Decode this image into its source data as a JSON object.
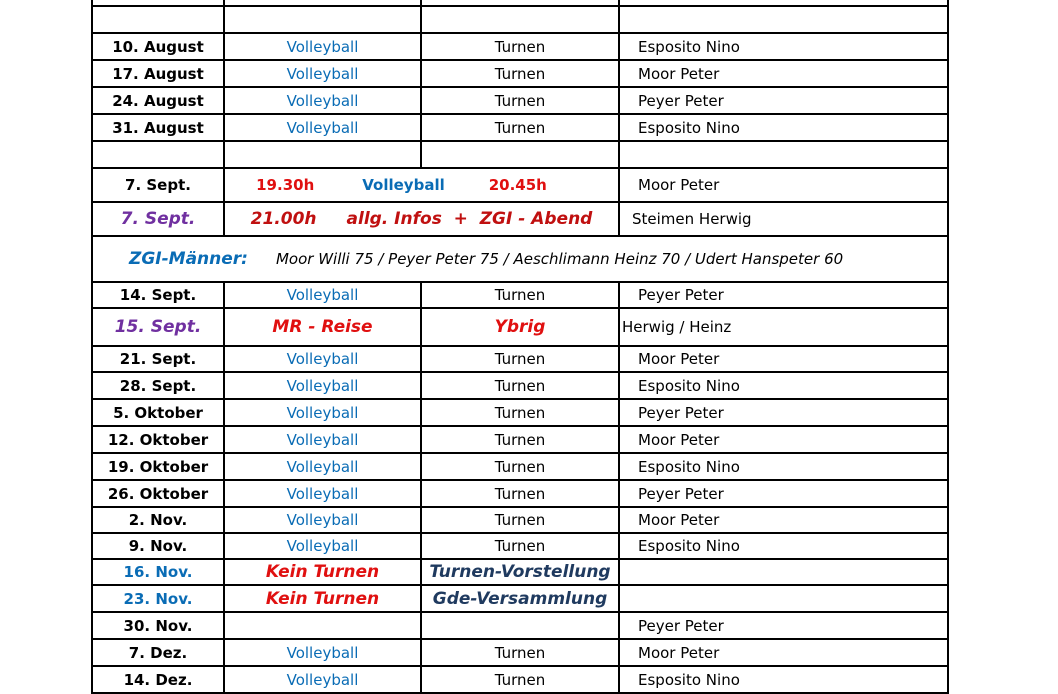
{
  "schedule": {
    "rows": [
      {
        "type": "blank"
      },
      {
        "type": "blank"
      },
      {
        "type": "normal",
        "date": "10. August",
        "a": "Volleyball",
        "b": "Turnen",
        "person": "Esposito Nino"
      },
      {
        "type": "normal",
        "date": "17. August",
        "a": "Volleyball",
        "b": "Turnen",
        "person": "Moor Peter"
      },
      {
        "type": "normal",
        "date": "24. August",
        "a": "Volleyball",
        "b": "Turnen",
        "person": "Peyer Peter"
      },
      {
        "type": "normal",
        "date": "31. August",
        "a": "Volleyball",
        "b": "Turnen",
        "person": "Esposito Nino"
      },
      {
        "type": "blank"
      },
      {
        "type": "times",
        "date": "7. Sept.",
        "start": "19.30h",
        "activity": "Volleyball",
        "end": "20.45h",
        "person": "Moor Peter"
      },
      {
        "type": "event",
        "date": "7. Sept.",
        "time": "21.00h",
        "activity": "allg. Infos  +  ZGI - Abend",
        "person": "Steimen Herwig"
      },
      {
        "type": "banner",
        "label": "ZGI-Männer:",
        "text": "Moor Willi 75 / Peyer Peter 75 / Aeschlimann Heinz 70 / Udert Hanspeter 60"
      },
      {
        "type": "normal",
        "date": "14. Sept.",
        "a": "Volleyball",
        "b": "Turnen",
        "person": "Peyer Peter"
      },
      {
        "type": "trip",
        "date": "15. Sept.",
        "a": "MR - Reise",
        "b": "Ybrig",
        "person": "Herwig / Heinz"
      },
      {
        "type": "normal",
        "date": "21. Sept.",
        "a": "Volleyball",
        "b": "Turnen",
        "person": "Moor Peter"
      },
      {
        "type": "normal",
        "date": "28. Sept.",
        "a": "Volleyball",
        "b": "Turnen",
        "person": "Esposito Nino"
      },
      {
        "type": "normal",
        "date": "5. Oktober",
        "a": "Volleyball",
        "b": "Turnen",
        "person": "Peyer Peter"
      },
      {
        "type": "normal",
        "date": "12. Oktober",
        "a": "Volleyball",
        "b": "Turnen",
        "person": "Moor Peter"
      },
      {
        "type": "normal",
        "date": "19. Oktober",
        "a": "Volleyball",
        "b": "Turnen",
        "person": "Esposito Nino"
      },
      {
        "type": "normal",
        "date": "26. Oktober",
        "a": "Volleyball",
        "b": "Turnen",
        "person": "Peyer Peter"
      },
      {
        "type": "normal",
        "date": "2. Nov.",
        "a": "Volleyball",
        "b": "Turnen",
        "person": "Moor Peter"
      },
      {
        "type": "normal",
        "date": "9. Nov.",
        "a": "Volleyball",
        "b": "Turnen",
        "person": "Esposito Nino"
      },
      {
        "type": "cancel",
        "date": "16. Nov.",
        "a": "Kein Turnen",
        "b": "Turnen-Vorstellung",
        "person": ""
      },
      {
        "type": "cancel",
        "date": "23. Nov.",
        "a": "Kein Turnen",
        "b": "Gde-Versammlung",
        "person": ""
      },
      {
        "type": "normal",
        "date": "30. Nov.",
        "a": "",
        "b": "",
        "person": "Peyer Peter"
      },
      {
        "type": "normal",
        "date": "7. Dez.",
        "a": "Volleyball",
        "b": "Turnen",
        "person": "Moor Peter"
      },
      {
        "type": "normal",
        "date": "14. Dez.",
        "a": "Volleyball",
        "b": "Turnen",
        "person": "Esposito Nino"
      }
    ]
  },
  "colors": {
    "volleyball": "#0a6cb5",
    "highlight_red": "#e01010",
    "purple": "#7030a0",
    "navy": "#1f3a5f"
  }
}
